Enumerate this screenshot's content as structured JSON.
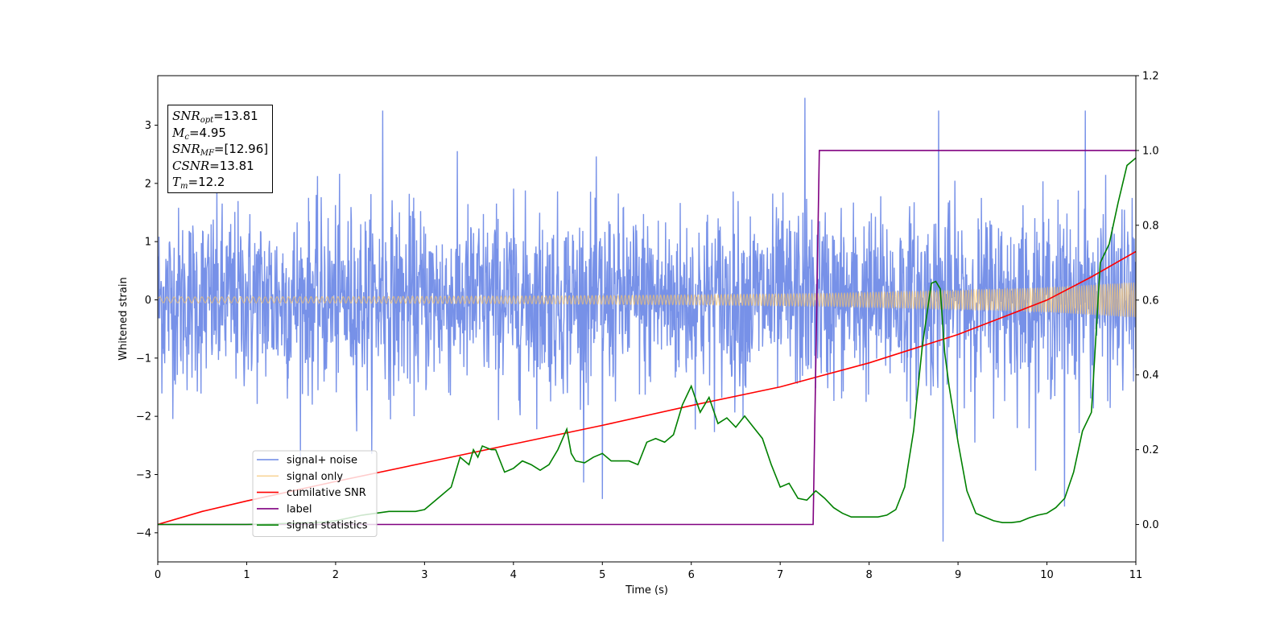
{
  "chart_data": {
    "type": "line",
    "xlabel": "Time (s)",
    "ylabel": "Whitened strain",
    "xlim": [
      0,
      11
    ],
    "ylim_left": [
      -4.5,
      3.85
    ],
    "ylim_right": [
      -0.1,
      1.2
    ],
    "x_ticks": [
      "0",
      "1",
      "2",
      "3",
      "4",
      "5",
      "6",
      "7",
      "8",
      "9",
      "10",
      "11"
    ],
    "y_ticks_left": [
      "3",
      "2",
      "1",
      "0",
      "−1",
      "−2",
      "−3",
      "−4"
    ],
    "y_ticks_left_values": [
      3,
      2,
      1,
      0,
      -1,
      -2,
      -3,
      -4
    ],
    "y_ticks_right": [
      "1.2",
      "1.0",
      "0.8",
      "0.6",
      "0.4",
      "0.2",
      "0.0"
    ],
    "y_ticks_right_values": [
      1.2,
      1.0,
      0.8,
      0.6,
      0.4,
      0.2,
      0.0
    ],
    "grid": false,
    "legend_position": "lower-left",
    "series": [
      {
        "name": "signal+ noise",
        "axis": "left",
        "color": "#6b88e6",
        "style": "dense noise, roughly gaussian with std ~0.8, ranging about -4.2 to 3.5",
        "peaks_max": [
          [
            2.53,
            3.25
          ],
          [
            7.28,
            3.47
          ],
          [
            8.78,
            3.25
          ],
          [
            10.43,
            3.25
          ]
        ],
        "peaks_min": [
          [
            8.83,
            -4.15
          ],
          [
            5.0,
            -3.42
          ],
          [
            10.2,
            -3.55
          ]
        ]
      },
      {
        "name": "signal only",
        "axis": "left",
        "color": "#f5c36e",
        "style": "chirp oscillation with growing envelope",
        "envelope": {
          "x": [
            0,
            2,
            4,
            6,
            7.5,
            9,
            10,
            11
          ],
          "amp": [
            0.05,
            0.055,
            0.065,
            0.085,
            0.11,
            0.16,
            0.21,
            0.3
          ]
        }
      },
      {
        "name": "cumilative SNR",
        "axis": "right",
        "color": "#ff0000",
        "x": [
          0,
          0.5,
          1,
          2,
          3,
          4,
          5,
          6,
          7,
          8,
          9,
          10,
          10.5,
          11
        ],
        "y": [
          0.0,
          0.035,
          0.063,
          0.115,
          0.165,
          0.215,
          0.265,
          0.318,
          0.368,
          0.432,
          0.508,
          0.6,
          0.662,
          0.73
        ]
      },
      {
        "name": "label",
        "axis": "right",
        "color": "#800080",
        "x": [
          0,
          7.37,
          7.44,
          11
        ],
        "y": [
          0.0,
          0.0,
          1.0,
          1.0
        ]
      },
      {
        "name": "signal statistics",
        "axis": "right",
        "color": "#008000",
        "x": [
          0,
          1,
          1.8,
          2.0,
          2.3,
          2.6,
          2.9,
          3.0,
          3.2,
          3.3,
          3.4,
          3.5,
          3.55,
          3.6,
          3.65,
          3.75,
          3.8,
          3.9,
          4.0,
          4.1,
          4.2,
          4.3,
          4.4,
          4.5,
          4.6,
          4.65,
          4.7,
          4.8,
          4.9,
          5.0,
          5.1,
          5.2,
          5.3,
          5.4,
          5.5,
          5.6,
          5.7,
          5.8,
          5.9,
          6.0,
          6.1,
          6.2,
          6.3,
          6.4,
          6.5,
          6.6,
          6.7,
          6.8,
          6.9,
          7.0,
          7.1,
          7.2,
          7.3,
          7.4,
          7.5,
          7.6,
          7.7,
          7.8,
          7.9,
          8.0,
          8.1,
          8.2,
          8.3,
          8.4,
          8.5,
          8.6,
          8.7,
          8.75,
          8.8,
          8.85,
          8.9,
          9.0,
          9.1,
          9.2,
          9.3,
          9.4,
          9.5,
          9.6,
          9.7,
          9.8,
          9.9,
          10.0,
          10.1,
          10.2,
          10.3,
          10.4,
          10.5,
          10.6,
          10.7,
          10.8,
          10.9,
          11.0
        ],
        "y": [
          0.0,
          0.0,
          0.005,
          0.01,
          0.025,
          0.035,
          0.035,
          0.04,
          0.08,
          0.1,
          0.18,
          0.16,
          0.2,
          0.18,
          0.21,
          0.2,
          0.2,
          0.14,
          0.15,
          0.17,
          0.16,
          0.145,
          0.16,
          0.2,
          0.255,
          0.19,
          0.17,
          0.165,
          0.18,
          0.19,
          0.17,
          0.17,
          0.17,
          0.16,
          0.22,
          0.23,
          0.22,
          0.24,
          0.32,
          0.37,
          0.3,
          0.34,
          0.27,
          0.285,
          0.26,
          0.29,
          0.26,
          0.23,
          0.16,
          0.1,
          0.11,
          0.07,
          0.065,
          0.09,
          0.07,
          0.045,
          0.03,
          0.02,
          0.02,
          0.02,
          0.02,
          0.025,
          0.04,
          0.1,
          0.25,
          0.48,
          0.645,
          0.65,
          0.63,
          0.46,
          0.37,
          0.22,
          0.09,
          0.03,
          0.02,
          0.01,
          0.005,
          0.005,
          0.008,
          0.018,
          0.025,
          0.03,
          0.045,
          0.07,
          0.14,
          0.25,
          0.3,
          0.7,
          0.75,
          0.86,
          0.96,
          0.98
        ]
      }
    ]
  },
  "info_box": {
    "lines": [
      {
        "symbol": "SNR",
        "sub": "opt",
        "value": "=13.81"
      },
      {
        "symbol": "M",
        "sub": "c",
        "value": "=4.95"
      },
      {
        "symbol": "SNR",
        "sub": "MF",
        "value": "=[12.96]"
      },
      {
        "symbol": "CSNR",
        "sub": "",
        "value": "=13.81"
      },
      {
        "symbol": "T",
        "sub": "m",
        "value": "=12.2"
      }
    ]
  }
}
